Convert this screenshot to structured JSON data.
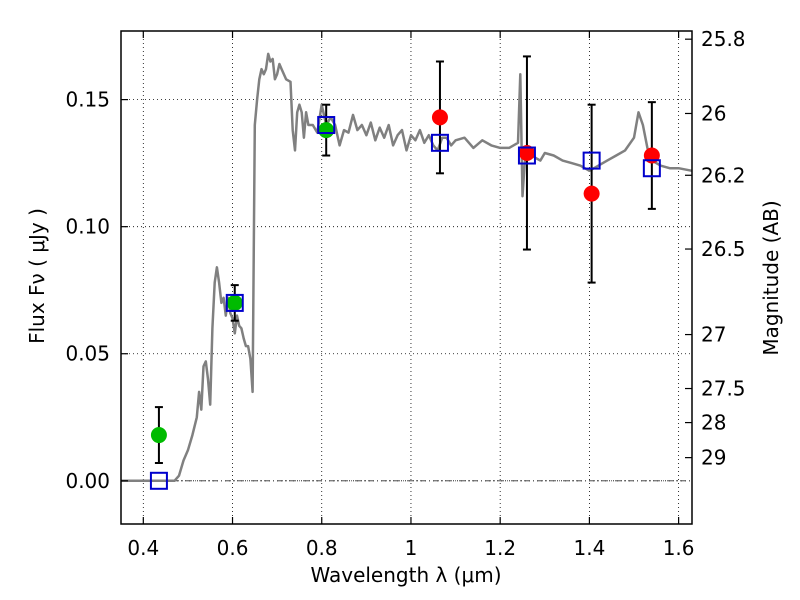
{
  "chart_data": {
    "type": "scatter",
    "xlabel": "Wavelength  λ (μm)",
    "ylabel": "Flux  Fν  ( μJy )",
    "y2label": "Magnitude (AB)",
    "xlim": [
      0.35,
      1.63
    ],
    "ylim": [
      -0.017,
      0.177
    ],
    "grid": true,
    "x_ticks": [
      0.4,
      0.6,
      0.8,
      1.0,
      1.2,
      1.4,
      1.6
    ],
    "x_tick_labels": [
      "0.4",
      "0.6",
      "0.8",
      "1",
      "1.2",
      "1.4",
      "1.6"
    ],
    "y_ticks": [
      0.0,
      0.05,
      0.1,
      0.15
    ],
    "y_tick_labels": [
      "0.00",
      "0.05",
      "0.10",
      "0.15"
    ],
    "mag_ticks": [
      25.8,
      26,
      26.2,
      26.5,
      27,
      27.5,
      28,
      29
    ],
    "mag_tick_labels": [
      "25.8",
      "26",
      "26.2",
      "26.5",
      "27",
      "27.5",
      "28",
      "29"
    ],
    "model_spectrum": {
      "x": [
        0.35,
        0.47,
        0.48,
        0.49,
        0.5,
        0.51,
        0.52,
        0.525,
        0.53,
        0.535,
        0.54,
        0.545,
        0.55,
        0.555,
        0.56,
        0.565,
        0.57,
        0.575,
        0.58,
        0.585,
        0.59,
        0.595,
        0.6,
        0.605,
        0.61,
        0.615,
        0.62,
        0.625,
        0.63,
        0.635,
        0.64,
        0.645,
        0.65,
        0.655,
        0.66,
        0.665,
        0.67,
        0.675,
        0.68,
        0.685,
        0.69,
        0.695,
        0.7,
        0.705,
        0.71,
        0.72,
        0.73,
        0.735,
        0.74,
        0.745,
        0.75,
        0.755,
        0.76,
        0.765,
        0.77,
        0.78,
        0.79,
        0.8,
        0.81,
        0.82,
        0.83,
        0.84,
        0.85,
        0.86,
        0.87,
        0.88,
        0.89,
        0.9,
        0.91,
        0.92,
        0.93,
        0.94,
        0.95,
        0.96,
        0.97,
        0.98,
        0.99,
        1.0,
        1.01,
        1.02,
        1.03,
        1.04,
        1.05,
        1.06,
        1.07,
        1.08,
        1.09,
        1.1,
        1.12,
        1.14,
        1.16,
        1.18,
        1.2,
        1.22,
        1.24,
        1.245,
        1.25,
        1.255,
        1.26,
        1.27,
        1.28,
        1.29,
        1.3,
        1.32,
        1.34,
        1.36,
        1.38,
        1.4,
        1.42,
        1.44,
        1.46,
        1.48,
        1.5,
        1.51,
        1.52,
        1.53,
        1.54,
        1.56,
        1.58,
        1.6,
        1.63
      ],
      "y": [
        0.0,
        0.0,
        0.002,
        0.008,
        0.012,
        0.018,
        0.025,
        0.035,
        0.028,
        0.045,
        0.047,
        0.04,
        0.03,
        0.06,
        0.078,
        0.084,
        0.078,
        0.07,
        0.072,
        0.065,
        0.072,
        0.066,
        0.064,
        0.058,
        0.065,
        0.061,
        0.06,
        0.056,
        0.053,
        0.053,
        0.048,
        0.035,
        0.14,
        0.15,
        0.158,
        0.162,
        0.16,
        0.162,
        0.168,
        0.165,
        0.166,
        0.158,
        0.16,
        0.164,
        0.162,
        0.158,
        0.157,
        0.138,
        0.13,
        0.145,
        0.148,
        0.145,
        0.135,
        0.145,
        0.14,
        0.14,
        0.137,
        0.148,
        0.14,
        0.143,
        0.14,
        0.132,
        0.138,
        0.137,
        0.144,
        0.138,
        0.14,
        0.136,
        0.141,
        0.134,
        0.139,
        0.135,
        0.14,
        0.132,
        0.136,
        0.138,
        0.13,
        0.136,
        0.134,
        0.138,
        0.133,
        0.136,
        0.132,
        0.13,
        0.135,
        0.135,
        0.132,
        0.134,
        0.135,
        0.131,
        0.134,
        0.132,
        0.131,
        0.131,
        0.133,
        0.16,
        0.112,
        0.125,
        0.13,
        0.128,
        0.127,
        0.126,
        0.129,
        0.128,
        0.126,
        0.125,
        0.124,
        0.122,
        0.124,
        0.126,
        0.128,
        0.13,
        0.135,
        0.145,
        0.14,
        0.131,
        0.126,
        0.124,
        0.123,
        0.123,
        0.122
      ]
    },
    "photometry_red": {
      "x": [
        1.065,
        1.26,
        1.405,
        1.54
      ],
      "y": [
        0.143,
        0.129,
        0.113,
        0.128
      ],
      "err": [
        0.022,
        0.038,
        0.035,
        0.021
      ],
      "color": "#ff0000"
    },
    "photometry_green": {
      "x": [
        0.435,
        0.605,
        0.81
      ],
      "y": [
        0.018,
        0.07,
        0.138
      ],
      "err": [
        0.011,
        0.007,
        0.01
      ],
      "color": "#00bb00"
    },
    "model_points": {
      "x": [
        0.435,
        0.605,
        0.81,
        1.065,
        1.26,
        1.405,
        1.54
      ],
      "y": [
        0.0,
        0.07,
        0.14,
        0.133,
        0.128,
        0.126,
        0.123
      ],
      "color": "#0000cc"
    },
    "spectrum_color": "#808080",
    "zero_line_color": "#333333"
  }
}
